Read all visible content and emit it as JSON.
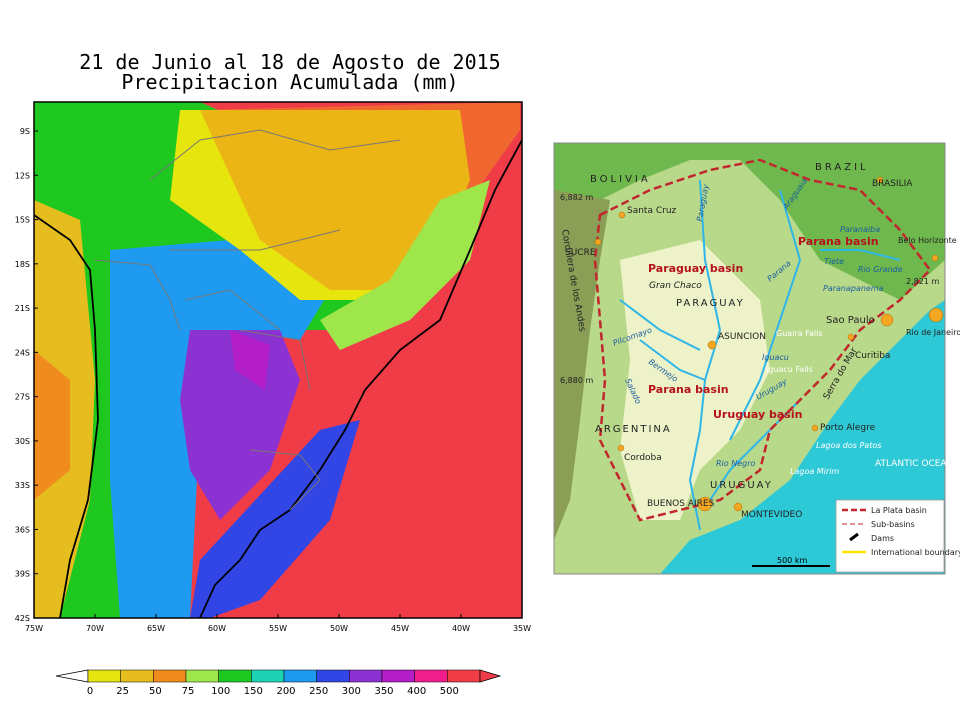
{
  "precip_map": {
    "title_line1": "21 de Junio al 18 de Agosto de 2015",
    "title_line2": "Precipitacion Acumulada (mm)",
    "lat_ticks": [
      "9S",
      "12S",
      "15S",
      "18S",
      "21S",
      "24S",
      "27S",
      "30S",
      "33S",
      "36S",
      "39S",
      "42S"
    ],
    "lon_ticks": [
      "75W",
      "70W",
      "65W",
      "60W",
      "55W",
      "50W",
      "45W",
      "40W",
      "35W"
    ],
    "colorbar": {
      "labels": [
        "0",
        "25",
        "50",
        "75",
        "100",
        "150",
        "200",
        "250",
        "300",
        "350",
        "400",
        "500"
      ],
      "colors": [
        "#e6e60e",
        "#e6bd1e",
        "#f08c1e",
        "#9ee64a",
        "#1ec81e",
        "#1ed2b4",
        "#1e9bf0",
        "#3246e6",
        "#8c32d2",
        "#b41ec8",
        "#f01e8c",
        "#f03c46"
      ]
    }
  },
  "plata_map": {
    "countries": [
      "BOLIVIA",
      "BRAZIL",
      "PARAGUAY",
      "ARGENTINA",
      "URUGUAY"
    ],
    "basins": [
      "Paraguay basin",
      "Parana basin",
      "Parana basin",
      "Uruguay basin"
    ],
    "cities": [
      "Santa Cruz",
      "SUCRE",
      "BRASILIA",
      "Belo Horizonte",
      "ASUNCION",
      "Sao Paulo",
      "Rio de Janeiro",
      "Curitiba",
      "Porto Alegre",
      "Cordoba",
      "BUENOS AIRES",
      "MONTEVIDEO"
    ],
    "rivers": [
      "Paraguay",
      "Araguaia",
      "Paranaiba",
      "Tiete",
      "Rio Grande",
      "Paranapanema",
      "Parana",
      "Pilcomayo",
      "Bermejo",
      "Salado",
      "Iguacu",
      "Uruguay",
      "Rio Negro"
    ],
    "features": [
      "Gran Chaco",
      "Cordillera de los Andes",
      "Serra do Mar",
      "Guaira Falls",
      "Iguacu Falls",
      "Lagoa dos Patos",
      "Lagoa Mirim",
      "ATLANTIC OCEAN"
    ],
    "elevations": [
      "6,882 m",
      "6,880 m",
      "2,821 m"
    ],
    "legend": [
      "La Plata basin",
      "Sub-basins",
      "Dams",
      "International boundary"
    ],
    "scale": "500 km"
  }
}
